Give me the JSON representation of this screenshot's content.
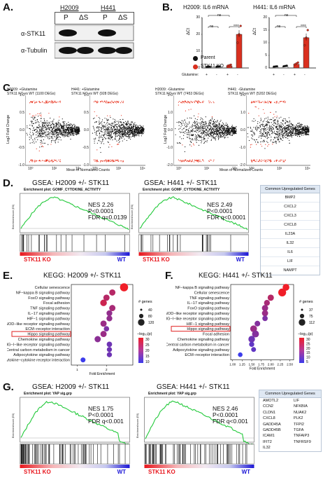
{
  "panels": {
    "A": {
      "label": "A.",
      "groups": [
        {
          "name": "H2009",
          "lanes": [
            "P",
            "ΔS"
          ]
        },
        {
          "name": "H441",
          "lanes": [
            "P",
            "ΔS"
          ]
        }
      ],
      "rows": [
        "α-STK11",
        "α-Tubulin"
      ]
    },
    "B": {
      "label": "B.",
      "plots": [
        {
          "title": "H2009: IL6 mRNA",
          "ylabel": "ΔCt",
          "yticks": [
            "0",
            "10",
            "20",
            "30"
          ],
          "glutamine_signs": [
            "+",
            "-",
            "+",
            "-"
          ],
          "sig": [
            "ns",
            "ns",
            "****"
          ],
          "chart_data": {
            "type": "bar",
            "categories": [
              "Parent +Gln",
              "Parent -Gln",
              "STK11 KO +Gln",
              "STK11 KO -Gln"
            ],
            "values": [
              0.3,
              0.4,
              1.2,
              20
            ],
            "ylim": [
              0,
              30
            ]
          }
        },
        {
          "title": "H441: IL6 mRNA",
          "ylabel": "ΔCt",
          "yticks": [
            "0",
            "5",
            "10",
            "15",
            "20"
          ],
          "glutamine_signs": [
            "+",
            "-",
            "+",
            "-"
          ],
          "sig": [
            "ns",
            "ns",
            "****"
          ],
          "chart_data": {
            "type": "bar",
            "categories": [
              "Parent +Gln",
              "Parent -Gln",
              "STK11 KO +Gln",
              "STK11 KO -Gln"
            ],
            "values": [
              0.3,
              0.5,
              1.5,
              12
            ],
            "ylim": [
              0,
              20
            ]
          }
        }
      ],
      "legend": [
        {
          "name": "Parent",
          "color": "#111111"
        },
        {
          "name": "STK11 KO",
          "color": "#d9301f"
        }
      ],
      "glutamine_label": "Glutamine:"
    },
    "C": {
      "label": "C.",
      "ylabel": "Log2 Fold Change",
      "xlabel": "Mean of Normalized Counts",
      "plots": [
        {
          "title1": "H2009: +Glutamine",
          "title2": "STK11 KO vs WT (1100 DEGs)",
          "yticks": [
            "1.0",
            "0.5",
            "0.0",
            "-0.5",
            "-1.0"
          ]
        },
        {
          "title1": "H441: +Glutamine",
          "title2": "STK11 KO vs WT (928 DEGs)",
          "yticks": [
            "1.0",
            "0.5",
            "0.0",
            "-0.5",
            "-1.0"
          ]
        },
        {
          "title1": "H2009: -Glutamine",
          "title2": "STK11 KO vs WT (7453 DEGs)",
          "yticks": [
            "2.0",
            "1.0",
            "0.0",
            "-1.0",
            "-2.0"
          ]
        },
        {
          "title1": "H441: -Glutamine",
          "title2": "STK11 KO vs WT (5202 DEGs)",
          "yticks": [
            "2.0",
            "1.0",
            "0.0",
            "-1.0",
            "-2.0"
          ]
        }
      ],
      "xticks": [
        "10⁰",
        "10²",
        "10⁴"
      ]
    },
    "D": {
      "label": "D.",
      "plots": [
        {
          "title": "GSEA: H2009 +/- STK11",
          "subtitle": "Enrichment plot: GOMF_CYTOKINE_ACTIVITY",
          "nes": "NES 2.26",
          "p": "P<0.0001",
          "fdr": "FDR q=0.0139"
        },
        {
          "title": "GSEA: H441 +/- STK11",
          "subtitle": "Enrichment plot: GOMF_CYTOKINE_ACTIVITY",
          "nes": "NES 2.49",
          "p": "P<0.0001",
          "fdr": "FDR q<0.0001"
        }
      ],
      "left_label": "STK11 KO",
      "right_label": "WT",
      "ylabel": "Enrichment score (ES)",
      "table_title": "Common Upregulated Genes",
      "genes": [
        "BMP2",
        "CXCL2",
        "CXCL3",
        "CXCL8",
        "IL23A",
        "IL32",
        "IL6",
        "LIF",
        "NAMPT"
      ]
    },
    "E": {
      "label": "E.",
      "title": "KEGG: H2009 +/- STK11",
      "xlabel": "Fold Enrichment",
      "terms": [
        "Cellular senescence",
        "NF−kappa B signaling pathway",
        "FoxO signaling pathway",
        "Focal adhesion",
        "TNF signaling pathway",
        "IL−17 signaling pathway",
        "HIF−1 signaling pathway",
        "NOD−like receptor signaling pathway",
        "ECM−receptor interaction",
        "Hippo signaling pathway",
        "Chemokine signaling pathway",
        "RIG−I−like receptor signaling pathway",
        "Central carbon metabolism in cancer",
        "Adipocytokine signaling pathway",
        "Cytokine−cytokine receptor interaction"
      ],
      "highlight_index": 9,
      "size_title": "# genes",
      "size_ticks": [
        "40",
        "80",
        "120"
      ],
      "color_title": "−log₁₀(p)",
      "color_ticks": [
        "30",
        "25",
        "20",
        "15",
        "10"
      ],
      "xticks": [
        "1",
        "2"
      ],
      "chart_data": {
        "type": "scatter",
        "fold": [
          2.6,
          2.2,
          2.0,
          1.9,
          2.2,
          2.1,
          2.1,
          1.9,
          2.0,
          1.9,
          1.7,
          2.1,
          2.1,
          2.1,
          1.2
        ],
        "ngenes": [
          120,
          60,
          60,
          70,
          60,
          50,
          50,
          60,
          40,
          60,
          60,
          40,
          35,
          35,
          30
        ],
        "neglogp": [
          30,
          22,
          22,
          25,
          20,
          17,
          17,
          18,
          14,
          18,
          16,
          12,
          12,
          12,
          5
        ]
      }
    },
    "F": {
      "label": "F.",
      "title": "KEGG: H441 +/- STK11",
      "xlabel": "Fold Enrichment",
      "terms": [
        "NF−kappa B signaling pathway",
        "Cellular senescence",
        "TNF signaling pathway",
        "IL−17 signaling pathway",
        "FoxO signaling pathway",
        "NOD−like receptor signaling pathway",
        "RIG−I−like receptor signaling pathway",
        "HIF−1 signaling pathway",
        "Hippo signaling pathway",
        "Focal adhesion",
        "Chemokine signaling pathway",
        "Central carbon metabolism in cancer",
        "Adipocytokine signaling pathway",
        "ECM−receptor interaction"
      ],
      "highlight_index": 8,
      "size_title": "# genes",
      "size_ticks": [
        "37",
        "75",
        "112"
      ],
      "color_title": "−log₁₀(p)",
      "color_ticks": [
        "30",
        "25",
        "20",
        "15",
        "10",
        "5"
      ],
      "xticks": [
        "1.00",
        "1.25",
        "1.50",
        "1.75",
        "2.00",
        "2.25",
        "2.50"
      ],
      "chart_data": {
        "type": "scatter",
        "fold": [
          2.4,
          2.3,
          2.0,
          1.9,
          1.85,
          1.85,
          1.85,
          1.65,
          1.55,
          1.6,
          1.5,
          1.5,
          1.55,
          1.2
        ],
        "ngenes": [
          75,
          112,
          60,
          50,
          60,
          60,
          40,
          45,
          75,
          80,
          70,
          35,
          30,
          25
        ],
        "neglogp": [
          30,
          30,
          22,
          20,
          18,
          18,
          14,
          15,
          18,
          15,
          12,
          10,
          10,
          5
        ]
      }
    },
    "G": {
      "label": "G.",
      "plots": [
        {
          "title": "GSEA: H2009 +/- STK11",
          "subtitle": "Enrichment plot: YAP sig.grp",
          "nes": "NES 1.75",
          "p": "P<0.0001",
          "fdr": "FDR q<0.001"
        },
        {
          "title": "GSEA: H441 +/- STK11",
          "subtitle": "Enrichment plot: YAP sig.grp",
          "nes": "NES 2.46",
          "p": "P<0.0001",
          "fdr": "FDR q<0.001"
        }
      ],
      "left_label": "STK11 KO",
      "right_label": "WT",
      "ylabel": "Enrichment score (ES)",
      "table_title": "Common Upregulated Genes",
      "genes_col1": [
        "AMOTL2",
        "CCN2",
        "CLDN1",
        "CXCL8",
        "GADD45A",
        "GADD45B",
        "ICAM1",
        "IFIT2",
        "IL32"
      ],
      "genes_col2": [
        "LIF",
        "NFKBIA",
        "NUAK2",
        "PLK2",
        "TFPI2",
        "TGFA",
        "TNFAIP3",
        "TNFRSF9"
      ]
    }
  }
}
